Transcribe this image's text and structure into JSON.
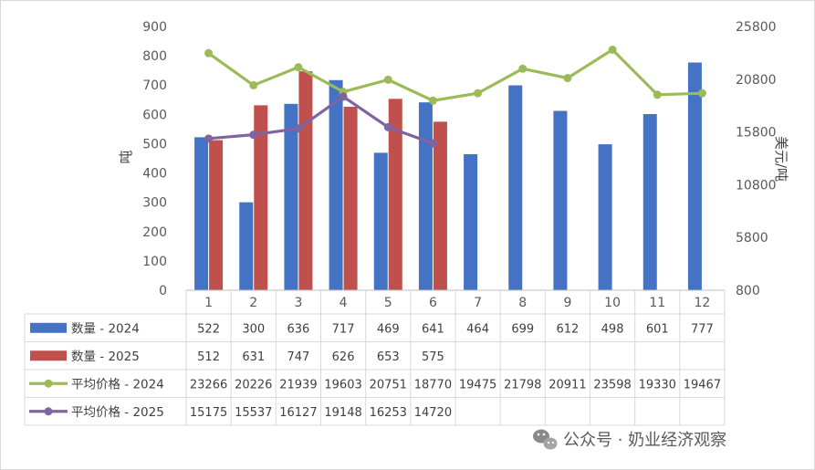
{
  "chart_data": {
    "type": "bar+line",
    "categories": [
      "1",
      "2",
      "3",
      "4",
      "5",
      "6",
      "7",
      "8",
      "9",
      "10",
      "11",
      "12"
    ],
    "bar_series": [
      {
        "name": "数量 - 2024",
        "color": "#4472c4",
        "values": [
          522,
          300,
          636,
          717,
          469,
          641,
          464,
          699,
          612,
          498,
          601,
          777
        ]
      },
      {
        "name": "数量 - 2025",
        "color": "#c0504d",
        "values": [
          512,
          631,
          747,
          626,
          653,
          575,
          null,
          null,
          null,
          null,
          null,
          null
        ]
      }
    ],
    "line_series": [
      {
        "name": "平均价格 - 2024",
        "color": "#9bbb59",
        "values": [
          23266,
          20226,
          21939,
          19603,
          20751,
          18770,
          19475,
          21798,
          20911,
          23598,
          19330,
          19467
        ]
      },
      {
        "name": "平均价格 - 2025",
        "color": "#8064a2",
        "values": [
          15175,
          15537,
          16127,
          19148,
          16253,
          14720,
          null,
          null,
          null,
          null,
          null,
          null
        ]
      }
    ],
    "ylabel": "吨",
    "y2label": "美元/吨",
    "ylim": [
      0,
      900
    ],
    "yticks": [
      "0",
      "100",
      "200",
      "300",
      "400",
      "500",
      "600",
      "700",
      "800",
      "900"
    ],
    "y2lim": [
      800,
      25800
    ],
    "y2ticks": [
      "800",
      "5800",
      "10800",
      "15800",
      "20800",
      "25800"
    ],
    "data_table": true,
    "grid": false
  },
  "watermark": {
    "text": "公众号 · 奶业经济观察",
    "icon": "wechat-icon"
  }
}
